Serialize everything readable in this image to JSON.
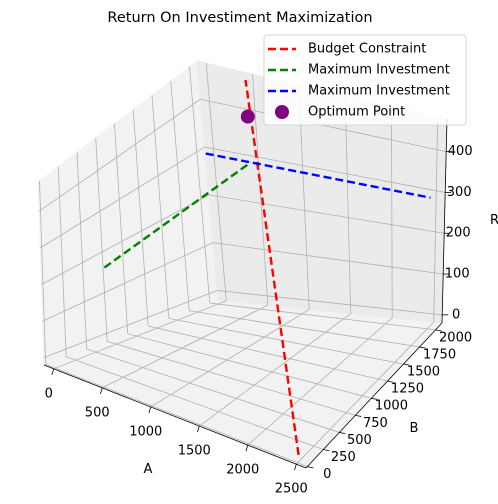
{
  "chart_data": {
    "type": "line3d",
    "title": "Return On Investiment Maximization",
    "xlabel": "A",
    "ylabel": "B",
    "zlabel": "R",
    "xlim": [
      -100,
      2600
    ],
    "ylim": [
      -20,
      2100
    ],
    "zlim": [
      -20,
      480
    ],
    "x_ticks": [
      0,
      500,
      1000,
      1500,
      2000,
      2500
    ],
    "y_ticks": [
      0,
      250,
      500,
      750,
      1000,
      1250,
      1500,
      1750,
      2000
    ],
    "z_ticks": [
      0,
      100,
      200,
      300,
      400
    ],
    "grid": true,
    "legend_position": "upper-right",
    "series": [
      {
        "name": "Budget Constraint",
        "kind": "line",
        "linestyle": "dashed",
        "color": "#ff0000",
        "x": [
          2500,
          500
        ],
        "y": [
          0,
          2000
        ],
        "z": [
          0,
          480
        ]
      },
      {
        "name": "Maximum Investment",
        "kind": "line",
        "linestyle": "dashed",
        "color": "#008000",
        "x": [
          500,
          500
        ],
        "y": [
          0,
          2000
        ],
        "z": [
          300,
          300
        ]
      },
      {
        "name": "Maximum Investment",
        "kind": "line",
        "linestyle": "dashed",
        "color": "#0000ff",
        "x": [
          0,
          2500
        ],
        "y": [
          2000,
          2000
        ],
        "z": [
          300,
          300
        ]
      },
      {
        "name": "Optimum Point",
        "kind": "point",
        "color": "#800080",
        "x": [
          500
        ],
        "y": [
          2000
        ],
        "z": [
          400
        ]
      }
    ]
  }
}
